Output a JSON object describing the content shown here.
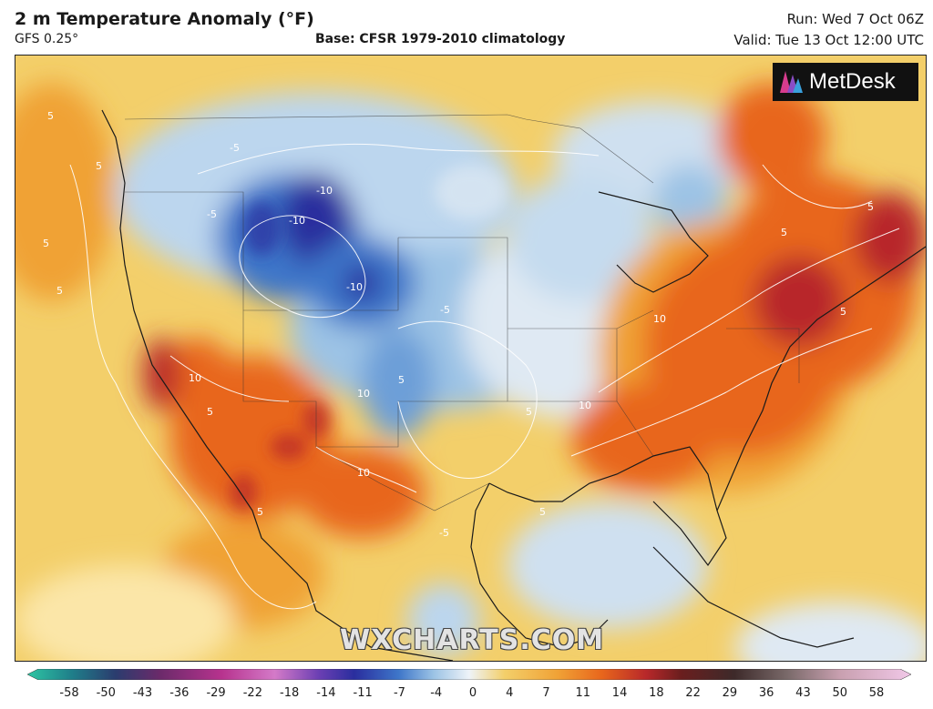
{
  "header": {
    "title": "2 m Temperature Anomaly (°F)",
    "model": "GFS 0.25°",
    "base": "Base: CFSR 1979-2010 climatology",
    "run": "Run: Wed 7 Oct 06Z",
    "valid": "Valid: Tue 13 Oct 12:00 UTC"
  },
  "logo": {
    "text": "MetDesk"
  },
  "watermark": "WXCHARTS.COM",
  "map": {
    "contour_labels": [
      "5",
      "5",
      "5",
      "5",
      "-5",
      "-5",
      "-10",
      "-10",
      "-10",
      "-5",
      "5",
      "10",
      "10",
      "10",
      "10",
      "10",
      "5",
      "5",
      "5",
      "5",
      "5",
      "5",
      "5",
      "-5"
    ]
  },
  "legend": {
    "ticks": [
      "-58",
      "-50",
      "-43",
      "-36",
      "-29",
      "-22",
      "-18",
      "-14",
      "-11",
      "-7",
      "-4",
      "0",
      "4",
      "7",
      "11",
      "14",
      "18",
      "22",
      "29",
      "36",
      "43",
      "50",
      "58"
    ]
  },
  "colors": {
    "warm_light": "#f3cf6a",
    "warm_mid": "#f0a236",
    "warm_strong": "#e8661c",
    "hot": "#b8282a",
    "cool_light": "#dfe9f3",
    "cool_mid": "#9cc3e5",
    "cool_strong": "#3e76c9",
    "cold": "#2a2e9e"
  }
}
